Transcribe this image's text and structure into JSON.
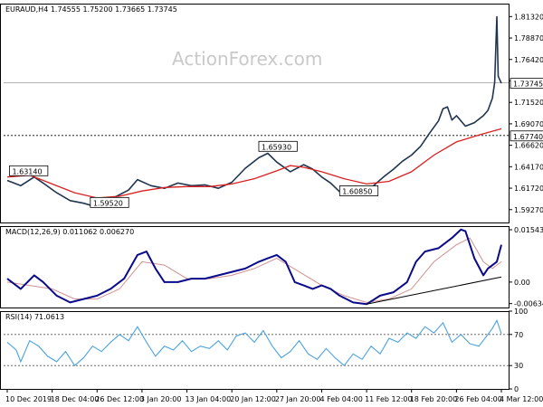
{
  "chart_data": {
    "type": "candlestick",
    "watermark": "ActionForex.com",
    "main": {
      "header": "EURAUD,H4  1.74555 1.75200 1.73665 1.73745",
      "ylim": [
        1.578,
        1.828
      ],
      "y_ticks": [
        "1.81320",
        "1.78870",
        "1.76420",
        "1.73970",
        "1.71520",
        "1.69070",
        "1.66620",
        "1.64170",
        "1.61720",
        "1.59270"
      ],
      "y_tick_values": [
        1.8132,
        1.7887,
        1.7642,
        1.7397,
        1.7152,
        1.6907,
        1.6662,
        1.6417,
        1.6172,
        1.5927
      ],
      "current_price": {
        "label": "1.73745",
        "value": 1.73745
      },
      "hline": {
        "label": "1.67740",
        "value": 1.6774
      },
      "annotations": [
        {
          "text": "1.63140",
          "x": 0.5,
          "y": 1.6314
        },
        {
          "text": "1.59520",
          "x": 18.5,
          "y": 1.5952
        },
        {
          "text": "1.65930",
          "x": 56,
          "y": 1.6593
        },
        {
          "text": "1.60850",
          "x": 74,
          "y": 1.6085
        }
      ],
      "price_path": [
        [
          0,
          1.626
        ],
        [
          3,
          1.62
        ],
        [
          6,
          1.63
        ],
        [
          8,
          1.623
        ],
        [
          11,
          1.612
        ],
        [
          14,
          1.603
        ],
        [
          17,
          1.6
        ],
        [
          19,
          1.597
        ],
        [
          21,
          1.6
        ],
        [
          24,
          1.607
        ],
        [
          27,
          1.615
        ],
        [
          29,
          1.627
        ],
        [
          32,
          1.62
        ],
        [
          35,
          1.617
        ],
        [
          38,
          1.623
        ],
        [
          41,
          1.62
        ],
        [
          44,
          1.621
        ],
        [
          47,
          1.617
        ],
        [
          50,
          1.624
        ],
        [
          53,
          1.64
        ],
        [
          56,
          1.652
        ],
        [
          58,
          1.657
        ],
        [
          60,
          1.647
        ],
        [
          63,
          1.636
        ],
        [
          66,
          1.644
        ],
        [
          68,
          1.639
        ],
        [
          70,
          1.63
        ],
        [
          72,
          1.623
        ],
        [
          74,
          1.613
        ],
        [
          76,
          1.616
        ],
        [
          78,
          1.612
        ],
        [
          80,
          1.613
        ],
        [
          82,
          1.622
        ],
        [
          84,
          1.631
        ],
        [
          86,
          1.639
        ],
        [
          88,
          1.648
        ],
        [
          90,
          1.655
        ],
        [
          92,
          1.665
        ],
        [
          94,
          1.68
        ],
        [
          96,
          1.694
        ],
        [
          97,
          1.708
        ],
        [
          98,
          1.71
        ],
        [
          99,
          1.695
        ],
        [
          100,
          1.7
        ],
        [
          102,
          1.688
        ],
        [
          104,
          1.692
        ],
        [
          106,
          1.7
        ],
        [
          107,
          1.706
        ],
        [
          108,
          1.72
        ],
        [
          108.5,
          1.738
        ],
        [
          109,
          1.813
        ],
        [
          109.3,
          1.745
        ],
        [
          110,
          1.737
        ]
      ],
      "ma": [
        [
          0,
          1.63
        ],
        [
          5,
          1.632
        ],
        [
          10,
          1.622
        ],
        [
          15,
          1.612
        ],
        [
          20,
          1.606
        ],
        [
          25,
          1.608
        ],
        [
          30,
          1.614
        ],
        [
          35,
          1.618
        ],
        [
          40,
          1.619
        ],
        [
          45,
          1.619
        ],
        [
          50,
          1.622
        ],
        [
          55,
          1.628
        ],
        [
          60,
          1.637
        ],
        [
          63,
          1.643
        ],
        [
          66,
          1.641
        ],
        [
          70,
          1.636
        ],
        [
          75,
          1.628
        ],
        [
          80,
          1.622
        ],
        [
          85,
          1.625
        ],
        [
          90,
          1.636
        ],
        [
          95,
          1.655
        ],
        [
          100,
          1.67
        ],
        [
          105,
          1.678
        ],
        [
          110,
          1.685
        ]
      ]
    },
    "macd": {
      "header": "MACD(12,26,9) 0.011062 0.006270",
      "ylim": [
        -0.0075,
        0.0165
      ],
      "y_ticks": [
        "0.015434",
        "0.00",
        "-0.006347"
      ],
      "y_tick_values": [
        0.015434,
        0.0,
        -0.006347
      ],
      "macd_line": [
        [
          0,
          0.001
        ],
        [
          3,
          -0.002
        ],
        [
          6,
          0.002
        ],
        [
          8,
          0.0
        ],
        [
          11,
          -0.004
        ],
        [
          14,
          -0.006
        ],
        [
          17,
          -0.005
        ],
        [
          20,
          -0.004
        ],
        [
          23,
          -0.002
        ],
        [
          26,
          0.001
        ],
        [
          29,
          0.008
        ],
        [
          31,
          0.009
        ],
        [
          33,
          0.004
        ],
        [
          35,
          0.0
        ],
        [
          38,
          0.0
        ],
        [
          41,
          0.001
        ],
        [
          44,
          0.001
        ],
        [
          47,
          0.002
        ],
        [
          50,
          0.003
        ],
        [
          53,
          0.004
        ],
        [
          56,
          0.006
        ],
        [
          58,
          0.007
        ],
        [
          60,
          0.008
        ],
        [
          62,
          0.006
        ],
        [
          64,
          0.0
        ],
        [
          66,
          -0.001
        ],
        [
          68,
          -0.002
        ],
        [
          70,
          -0.001
        ],
        [
          72,
          -0.002
        ],
        [
          74,
          -0.004
        ],
        [
          77,
          -0.006
        ],
        [
          80,
          -0.0065
        ],
        [
          83,
          -0.004
        ],
        [
          86,
          -0.003
        ],
        [
          89,
          0.0
        ],
        [
          91,
          0.006
        ],
        [
          93,
          0.009
        ],
        [
          96,
          0.01
        ],
        [
          99,
          0.013
        ],
        [
          101,
          0.0155
        ],
        [
          102,
          0.015
        ],
        [
          104,
          0.007
        ],
        [
          106,
          0.002
        ],
        [
          107,
          0.004
        ],
        [
          109,
          0.006
        ],
        [
          110,
          0.011
        ]
      ],
      "signal_line": [
        [
          0,
          0.0
        ],
        [
          5,
          -0.001
        ],
        [
          10,
          -0.002
        ],
        [
          15,
          -0.005
        ],
        [
          20,
          -0.005
        ],
        [
          25,
          -0.002
        ],
        [
          30,
          0.006
        ],
        [
          35,
          0.005
        ],
        [
          40,
          0.001
        ],
        [
          45,
          0.001
        ],
        [
          50,
          0.002
        ],
        [
          55,
          0.004
        ],
        [
          60,
          0.007
        ],
        [
          65,
          0.003
        ],
        [
          70,
          -0.001
        ],
        [
          75,
          -0.004
        ],
        [
          80,
          -0.006
        ],
        [
          85,
          -0.005
        ],
        [
          90,
          -0.002
        ],
        [
          95,
          0.006
        ],
        [
          100,
          0.011
        ],
        [
          103,
          0.013
        ],
        [
          106,
          0.006
        ],
        [
          108,
          0.004
        ],
        [
          110,
          0.006
        ]
      ],
      "trendline": [
        [
          80,
          -0.0065
        ],
        [
          110,
          0.0015
        ]
      ]
    },
    "rsi": {
      "header": "RSI(14) 71.0613",
      "ylim": [
        0,
        100
      ],
      "y_ticks": [
        "100",
        "70",
        "30",
        "0"
      ],
      "y_tick_values": [
        100,
        70,
        30,
        0
      ],
      "levels": [
        70,
        30
      ],
      "values": [
        [
          0,
          60
        ],
        [
          2,
          50
        ],
        [
          3,
          35
        ],
        [
          5,
          62
        ],
        [
          7,
          55
        ],
        [
          9,
          42
        ],
        [
          11,
          35
        ],
        [
          13,
          48
        ],
        [
          15,
          30
        ],
        [
          17,
          40
        ],
        [
          19,
          55
        ],
        [
          21,
          48
        ],
        [
          23,
          60
        ],
        [
          25,
          70
        ],
        [
          27,
          62
        ],
        [
          29,
          80
        ],
        [
          31,
          60
        ],
        [
          33,
          42
        ],
        [
          35,
          55
        ],
        [
          37,
          50
        ],
        [
          39,
          62
        ],
        [
          41,
          48
        ],
        [
          43,
          55
        ],
        [
          45,
          52
        ],
        [
          47,
          62
        ],
        [
          49,
          50
        ],
        [
          51,
          68
        ],
        [
          53,
          72
        ],
        [
          55,
          60
        ],
        [
          57,
          75
        ],
        [
          59,
          55
        ],
        [
          61,
          40
        ],
        [
          63,
          48
        ],
        [
          65,
          62
        ],
        [
          67,
          45
        ],
        [
          69,
          38
        ],
        [
          71,
          52
        ],
        [
          73,
          40
        ],
        [
          75,
          30
        ],
        [
          77,
          45
        ],
        [
          79,
          38
        ],
        [
          81,
          55
        ],
        [
          83,
          45
        ],
        [
          85,
          65
        ],
        [
          87,
          60
        ],
        [
          89,
          72
        ],
        [
          91,
          65
        ],
        [
          93,
          80
        ],
        [
          95,
          72
        ],
        [
          97,
          85
        ],
        [
          99,
          60
        ],
        [
          101,
          70
        ],
        [
          103,
          58
        ],
        [
          105,
          55
        ],
        [
          107,
          70
        ],
        [
          108,
          78
        ],
        [
          109,
          88
        ],
        [
          110,
          71
        ]
      ]
    },
    "x_labels": [
      "10 Dec 2019",
      "18 Dec 04:00",
      "26 Dec 12:00",
      "3 Jan 20:00",
      "13 Jan 04:00",
      "20 Jan 12:00",
      "27 Jan 20:00",
      "4 Feb 04:00",
      "11 Feb 12:00",
      "18 Feb 20:00",
      "26 Feb 04:00",
      "4 Mar 12:00"
    ],
    "x_label_values": [
      0,
      10,
      20,
      30,
      40,
      50,
      60,
      70,
      80,
      90,
      100,
      110
    ],
    "x_range": [
      0,
      110
    ],
    "colors": {
      "price": "#1f3550",
      "ma": "#d92020",
      "macd": "#0a0a8a",
      "signal": "#d09090",
      "rsi": "#4aa3df",
      "grid": "#000000"
    }
  }
}
